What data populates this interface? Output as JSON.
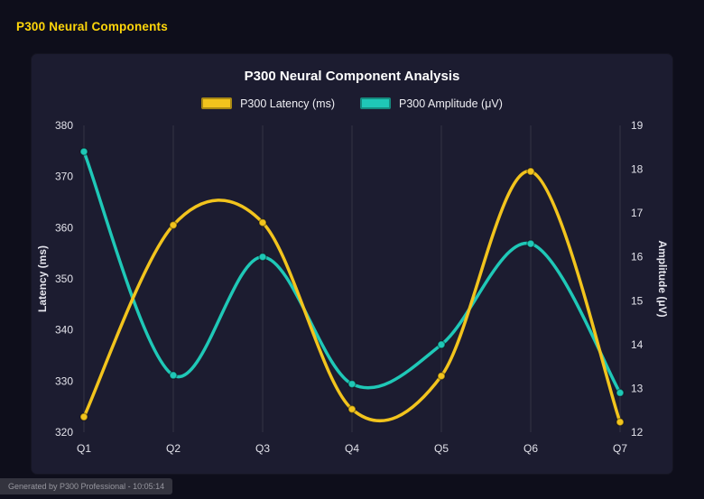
{
  "page": {
    "header": "P300 Neural Components",
    "footer": "Generated by P300 Professional - 10:05:14"
  },
  "colors": {
    "page_bg": "#0e0e1b",
    "panel_bg": "#1c1c30",
    "header_text": "#ffd60a",
    "latency_yellow": "#f2c41d",
    "amplitude_teal": "#1fc8b7",
    "gridline": "rgba(255,255,255,0.10)"
  },
  "chart_data": {
    "type": "line",
    "title": "P300 Neural Component Analysis",
    "categories": [
      "Q1",
      "Q2",
      "Q3",
      "Q4",
      "Q5",
      "Q6",
      "Q7"
    ],
    "series": [
      {
        "name": "P300 Latency (ms)",
        "axis": "left",
        "color": "#f2c41d",
        "values": [
          323,
          360.5,
          361,
          324.5,
          331,
          371,
          322
        ]
      },
      {
        "name": "P300 Amplitude (μV)",
        "axis": "right",
        "color": "#1fc8b7",
        "values": [
          18.4,
          13.3,
          16.0,
          13.1,
          14.0,
          16.3,
          12.9
        ]
      }
    ],
    "left_axis": {
      "label": "Latency (ms)",
      "min": 320,
      "max": 380,
      "ticks": [
        320,
        330,
        340,
        350,
        360,
        370,
        380
      ]
    },
    "right_axis": {
      "label": "Amplitude (μV)",
      "min": 12,
      "max": 19,
      "ticks": [
        12,
        13,
        14,
        15,
        16,
        17,
        18,
        19
      ]
    },
    "grid": "vertical",
    "legend_position": "top",
    "smooth": true
  }
}
